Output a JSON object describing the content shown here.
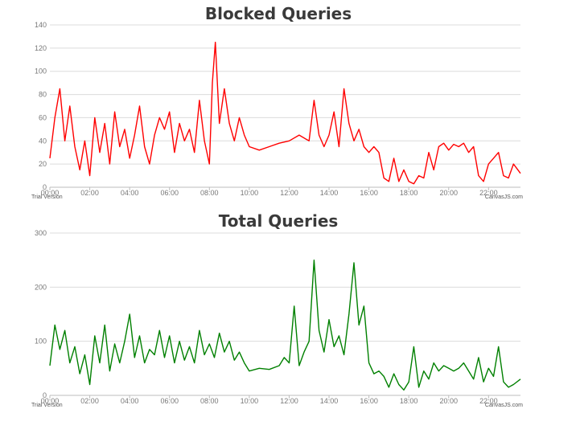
{
  "chart_data": [
    {
      "type": "line",
      "title": "Blocked Queries",
      "color": "#ff0000",
      "ylim": [
        0,
        140
      ],
      "yticks": [
        0,
        20,
        40,
        60,
        80,
        100,
        120,
        140
      ],
      "xticks": [
        "00:00",
        "02:00",
        "04:00",
        "06:00",
        "08:00",
        "10:00",
        "12:00",
        "14:00",
        "16:00",
        "18:00",
        "20:00",
        "22:00"
      ],
      "x_range_hours": [
        0,
        23.6
      ],
      "grid": true,
      "watermark_left": "Trial Version",
      "watermark_right": "CanvasJS.com",
      "series": [
        {
          "x": [
            0,
            0.25,
            0.5,
            0.75,
            1,
            1.25,
            1.5,
            1.75,
            2,
            2.25,
            2.5,
            2.75,
            3,
            3.25,
            3.5,
            3.75,
            4,
            4.25,
            4.5,
            4.75,
            5,
            5.25,
            5.5,
            5.75,
            6,
            6.25,
            6.5,
            6.75,
            7,
            7.25,
            7.5,
            7.75,
            8,
            8.15,
            8.3,
            8.5,
            8.75,
            9,
            9.25,
            9.5,
            9.75,
            10,
            10.5,
            11,
            11.5,
            12,
            12.5,
            13,
            13.25,
            13.5,
            13.75,
            14,
            14.25,
            14.5,
            14.75,
            15,
            15.25,
            15.5,
            15.75,
            16,
            16.25,
            16.5,
            16.75,
            17,
            17.25,
            17.5,
            17.75,
            18,
            18.25,
            18.5,
            18.75,
            19,
            19.25,
            19.5,
            19.75,
            20,
            20.25,
            20.5,
            20.75,
            21,
            21.25,
            21.5,
            21.75,
            22,
            22.25,
            22.5,
            22.75,
            23,
            23.25,
            23.6
          ],
          "y": [
            25,
            60,
            85,
            40,
            70,
            35,
            15,
            40,
            10,
            60,
            30,
            55,
            20,
            65,
            35,
            50,
            25,
            45,
            70,
            35,
            20,
            45,
            60,
            50,
            65,
            30,
            55,
            40,
            50,
            30,
            75,
            40,
            20,
            90,
            125,
            55,
            85,
            55,
            40,
            60,
            45,
            35,
            32,
            35,
            38,
            40,
            45,
            40,
            75,
            45,
            35,
            45,
            65,
            35,
            85,
            55,
            40,
            50,
            35,
            30,
            35,
            30,
            8,
            5,
            25,
            5,
            15,
            5,
            3,
            10,
            8,
            30,
            15,
            35,
            38,
            32,
            37,
            35,
            38,
            30,
            35,
            10,
            5,
            20,
            25,
            30,
            10,
            8,
            20,
            12
          ]
        }
      ]
    },
    {
      "type": "line",
      "title": "Total Queries",
      "color": "#008000",
      "ylim": [
        0,
        300
      ],
      "yticks": [
        0,
        100,
        200,
        300
      ],
      "xticks": [
        "00:00",
        "02:00",
        "04:00",
        "06:00",
        "08:00",
        "10:00",
        "12:00",
        "14:00",
        "16:00",
        "18:00",
        "20:00",
        "22:00"
      ],
      "x_range_hours": [
        0,
        23.6
      ],
      "grid": true,
      "watermark_left": "Trial Version",
      "watermark_right": "CanvasJS.com",
      "series": [
        {
          "x": [
            0,
            0.25,
            0.5,
            0.75,
            1,
            1.25,
            1.5,
            1.75,
            2,
            2.25,
            2.5,
            2.75,
            3,
            3.25,
            3.5,
            3.75,
            4,
            4.25,
            4.5,
            4.75,
            5,
            5.25,
            5.5,
            5.75,
            6,
            6.25,
            6.5,
            6.75,
            7,
            7.25,
            7.5,
            7.75,
            8,
            8.25,
            8.5,
            8.75,
            9,
            9.25,
            9.5,
            9.75,
            10,
            10.5,
            11,
            11.5,
            11.75,
            12,
            12.25,
            12.5,
            12.75,
            13,
            13.25,
            13.5,
            13.75,
            14,
            14.25,
            14.5,
            14.75,
            15,
            15.25,
            15.5,
            15.75,
            16,
            16.25,
            16.5,
            16.75,
            17,
            17.25,
            17.5,
            17.75,
            18,
            18.25,
            18.5,
            18.75,
            19,
            19.25,
            19.5,
            19.75,
            20,
            20.25,
            20.5,
            20.75,
            21,
            21.25,
            21.5,
            21.75,
            22,
            22.25,
            22.5,
            22.75,
            23,
            23.25,
            23.6
          ],
          "y": [
            55,
            130,
            85,
            120,
            60,
            90,
            40,
            75,
            20,
            110,
            60,
            130,
            45,
            95,
            60,
            100,
            150,
            70,
            110,
            60,
            85,
            75,
            120,
            70,
            110,
            60,
            100,
            65,
            90,
            60,
            120,
            75,
            95,
            70,
            115,
            80,
            100,
            65,
            80,
            60,
            45,
            50,
            48,
            55,
            70,
            60,
            165,
            55,
            80,
            100,
            250,
            120,
            80,
            140,
            90,
            110,
            75,
            150,
            245,
            130,
            165,
            60,
            40,
            45,
            35,
            15,
            40,
            20,
            10,
            25,
            90,
            15,
            45,
            30,
            60,
            45,
            55,
            50,
            45,
            50,
            60,
            45,
            30,
            70,
            25,
            50,
            35,
            90,
            25,
            15,
            20,
            30
          ]
        }
      ]
    }
  ]
}
